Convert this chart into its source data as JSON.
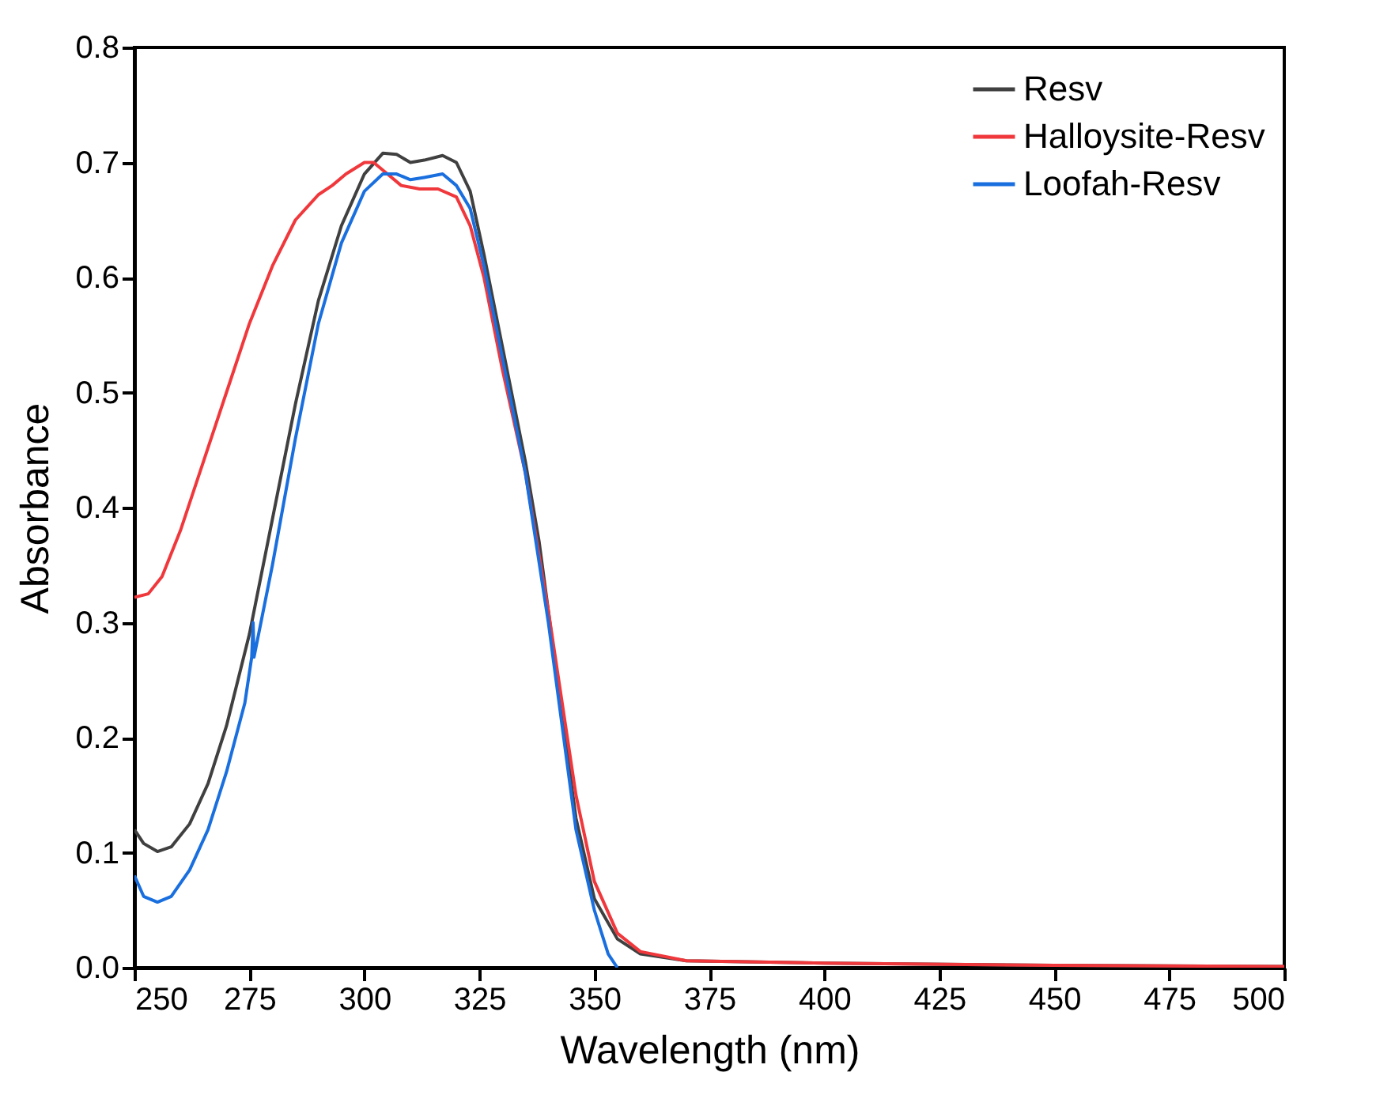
{
  "chart_data": {
    "type": "line",
    "xlabel": "Wavelength (nm)",
    "ylabel": "Absorbance",
    "xlim": [
      250,
      500
    ],
    "xticks": [
      250,
      275,
      300,
      325,
      350,
      375,
      400,
      425,
      450,
      475,
      500
    ],
    "ylim": [
      0,
      0.8
    ],
    "yticks": [
      {
        "value": 0,
        "label": "0.0"
      },
      0.1,
      0.2,
      0.3,
      0.4,
      0.5,
      0.6,
      0.7,
      0.8
    ],
    "legend": "top right",
    "grid": false,
    "line_style": "solid",
    "marker": "none",
    "series": [
      {
        "name": "Resv",
        "color": "#404040",
        "x": [
          250,
          252,
          255,
          258,
          262,
          266,
          270,
          275,
          280,
          285,
          290,
          295,
          300,
          304,
          307,
          310,
          313,
          317,
          320,
          323,
          326,
          330,
          335,
          338,
          340,
          343,
          346,
          350,
          355,
          360,
          370,
          400,
          450,
          500
        ],
        "values": [
          0.12,
          0.108,
          0.101,
          0.105,
          0.125,
          0.16,
          0.21,
          0.29,
          0.39,
          0.49,
          0.58,
          0.645,
          0.69,
          0.708,
          0.707,
          0.7,
          0.702,
          0.706,
          0.7,
          0.675,
          0.62,
          0.54,
          0.44,
          0.37,
          0.31,
          0.22,
          0.13,
          0.06,
          0.025,
          0.012,
          0.006,
          0.004,
          0.002,
          0.001
        ]
      },
      {
        "name": "Halloysite-Resv",
        "color": "#f0383c",
        "x": [
          250,
          253,
          256,
          260,
          265,
          270,
          275,
          280,
          285,
          290,
          293,
          296,
          300,
          302,
          305,
          308,
          312,
          316,
          320,
          323,
          326,
          330,
          335,
          340,
          343,
          346,
          350,
          355,
          360,
          370,
          400,
          450,
          500
        ],
        "values": [
          0.322,
          0.325,
          0.34,
          0.38,
          0.44,
          0.5,
          0.56,
          0.61,
          0.65,
          0.672,
          0.68,
          0.69,
          0.7,
          0.7,
          0.69,
          0.68,
          0.677,
          0.677,
          0.67,
          0.645,
          0.6,
          0.52,
          0.43,
          0.31,
          0.23,
          0.15,
          0.075,
          0.03,
          0.014,
          0.006,
          0.004,
          0.002,
          0.001
        ]
      },
      {
        "name": "Loofah-Resv",
        "color": "#1a6fdf",
        "x": [
          250,
          252,
          255,
          258,
          262,
          266,
          270,
          274,
          275.5,
          275.8,
          276,
          280,
          285,
          290,
          295,
          300,
          304,
          307,
          310,
          313,
          317,
          320,
          323,
          326,
          330,
          335,
          340,
          343,
          346,
          350,
          353,
          355
        ],
        "values": [
          0.08,
          0.062,
          0.057,
          0.062,
          0.085,
          0.12,
          0.17,
          0.23,
          0.27,
          0.3,
          0.27,
          0.35,
          0.46,
          0.56,
          0.63,
          0.675,
          0.69,
          0.69,
          0.685,
          0.687,
          0.69,
          0.68,
          0.66,
          0.61,
          0.53,
          0.43,
          0.3,
          0.21,
          0.12,
          0.05,
          0.012,
          0
        ]
      }
    ]
  }
}
